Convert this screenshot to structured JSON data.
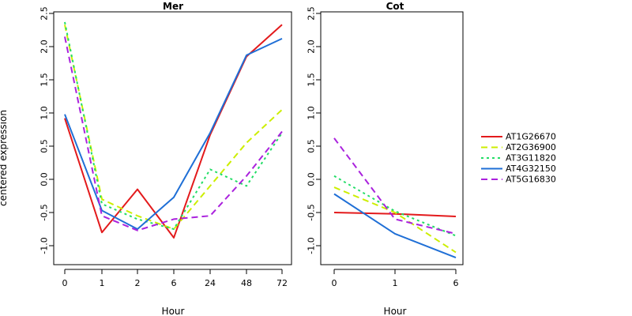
{
  "ylabel": "centered expression",
  "colors": {
    "AT1G26670": "#e31a1c",
    "AT2G36900": "#ccee00",
    "AT3G11820": "#22dd66",
    "AT4G32150": "#1f6fd6",
    "AT5G16830": "#aa22dd"
  },
  "legend": [
    {
      "name": "AT1G26670",
      "color": "#e31a1c",
      "dash": "solid"
    },
    {
      "name": "AT2G36900",
      "color": "#ccee00",
      "dash": "dashed"
    },
    {
      "name": "AT3G11820",
      "color": "#22dd66",
      "dash": "dotted"
    },
    {
      "name": "AT4G32150",
      "color": "#1f6fd6",
      "dash": "solid"
    },
    {
      "name": "AT5G16830",
      "color": "#aa22dd",
      "dash": "dashed"
    }
  ],
  "chart_data": [
    {
      "type": "line",
      "title": "Mer",
      "xlabel": "Hour",
      "ylabel": "centered expression",
      "categories": [
        "0",
        "1",
        "2",
        "6",
        "24",
        "48",
        "72"
      ],
      "ylim": [
        -1.35,
        2.5
      ],
      "yticks": [
        "-1.0",
        "-0.5",
        "0.0",
        "0.5",
        "1.0",
        "1.5",
        "2.0",
        "2.5"
      ],
      "yticks_vals": [
        -1.0,
        -0.5,
        0.0,
        0.5,
        1.0,
        1.5,
        2.0,
        2.5
      ],
      "series": [
        {
          "name": "AT1G26670",
          "values": [
            0.92,
            -0.8,
            -0.15,
            -0.88,
            0.67,
            1.85,
            2.33
          ]
        },
        {
          "name": "AT2G36900",
          "values": [
            2.33,
            -0.3,
            -0.55,
            -0.75,
            -0.1,
            0.55,
            1.05
          ]
        },
        {
          "name": "AT3G11820",
          "values": [
            2.37,
            -0.37,
            -0.6,
            -0.75,
            0.15,
            -0.1,
            0.7
          ]
        },
        {
          "name": "AT4G32150",
          "values": [
            0.98,
            -0.47,
            -0.75,
            -0.27,
            0.7,
            1.87,
            2.12
          ]
        },
        {
          "name": "AT5G16830",
          "values": [
            2.15,
            -0.55,
            -0.77,
            -0.6,
            -0.55,
            0.05,
            0.72
          ]
        }
      ]
    },
    {
      "type": "line",
      "title": "Cot",
      "xlabel": "Hour",
      "categories": [
        "0",
        "1",
        "6"
      ],
      "ylim": [
        -1.35,
        2.5
      ],
      "yticks": [
        "-1.0",
        "-0.5",
        "0.0",
        "0.5",
        "1.0",
        "1.5",
        "2.0",
        "2.5"
      ],
      "yticks_vals": [
        -1.0,
        -0.5,
        0.0,
        0.5,
        1.0,
        1.5,
        2.0,
        2.5
      ],
      "series": [
        {
          "name": "AT1G26670",
          "values": [
            -0.5,
            -0.52,
            -0.56
          ]
        },
        {
          "name": "AT2G36900",
          "values": [
            -0.12,
            -0.5,
            -1.1
          ]
        },
        {
          "name": "AT3G11820",
          "values": [
            0.05,
            -0.48,
            -0.85
          ]
        },
        {
          "name": "AT4G32150",
          "values": [
            -0.22,
            -0.82,
            -1.18
          ]
        },
        {
          "name": "AT5G16830",
          "values": [
            0.62,
            -0.6,
            -0.82
          ]
        }
      ]
    }
  ]
}
